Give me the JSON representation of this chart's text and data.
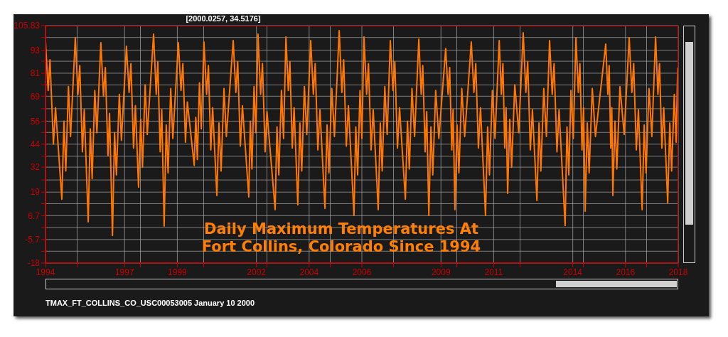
{
  "chart_data": {
    "type": "line",
    "title": "Daily Maximum Temperatures At Fort Collins, Colorado Since 1994",
    "annotations": [
      "[2000.0257, 34.5176]",
      "TMAX_FT_COLLINS_CO_USC00053005 January 10 2000"
    ],
    "x": [
      1994.0,
      1994.1,
      1994.17,
      1994.3,
      1994.38,
      1994.62,
      1994.7,
      1994.77,
      1994.87,
      1994.95,
      1995.13,
      1995.23,
      1995.3,
      1995.4,
      1995.47,
      1995.62,
      1995.7,
      1995.77,
      1995.87,
      1995.95,
      1996.1,
      1996.2,
      1996.27,
      1996.37,
      1996.43,
      1996.54,
      1996.62,
      1996.69,
      1996.8,
      1996.88,
      1997.07,
      1997.17,
      1997.24,
      1997.34,
      1997.41,
      1997.53,
      1997.61,
      1997.68,
      1997.78,
      1997.86,
      1998.1,
      1998.2,
      1998.26,
      1998.35,
      1998.41,
      1998.5,
      1998.58,
      1998.65,
      1998.75,
      1998.83,
      1999.04,
      1999.14,
      1999.21,
      1999.31,
      1999.38,
      1999.64,
      1999.7,
      1999.76,
      1999.84,
      1999.91,
      2000.01,
      2000.11,
      2000.18,
      2000.27,
      2000.34,
      2000.5,
      2000.58,
      2000.66,
      2000.77,
      2000.86,
      2001.12,
      2001.22,
      2001.29,
      2001.39,
      2001.47,
      2001.71,
      2001.77,
      2001.83,
      2001.91,
      2001.98,
      2002.06,
      2002.16,
      2002.23,
      2002.33,
      2002.4,
      2002.71,
      2002.78,
      2002.85,
      2002.95,
      2003.03,
      2003.12,
      2003.21,
      2003.27,
      2003.36,
      2003.43,
      2003.57,
      2003.65,
      2003.72,
      2003.82,
      2003.91,
      2004.06,
      2004.16,
      2004.23,
      2004.33,
      2004.41,
      2004.6,
      2004.68,
      2004.75,
      2004.86,
      2004.96,
      2005.14,
      2005.24,
      2005.31,
      2005.41,
      2005.49,
      2005.7,
      2005.77,
      2005.84,
      2005.93,
      2006.0,
      2006.08,
      2006.18,
      2006.25,
      2006.35,
      2006.43,
      2006.62,
      2006.7,
      2006.77,
      2006.87,
      2006.96,
      2007.08,
      2007.18,
      2007.25,
      2007.35,
      2007.43,
      2007.65,
      2007.73,
      2007.8,
      2007.9,
      2008.0,
      2008.16,
      2008.25,
      2008.31,
      2008.4,
      2008.46,
      2008.54,
      2008.62,
      2008.69,
      2008.8,
      2008.92,
      2009.18,
      2009.27,
      2009.33,
      2009.41,
      2009.46,
      2009.53,
      2009.61,
      2009.68,
      2009.79,
      2009.9,
      2010.15,
      2010.25,
      2010.32,
      2010.42,
      2010.5,
      2010.69,
      2010.77,
      2010.84,
      2010.95,
      2011.05,
      2011.21,
      2011.29,
      2011.35,
      2011.42,
      2011.47,
      2011.53,
      2011.61,
      2011.68,
      2011.8,
      2011.95,
      2012.12,
      2012.22,
      2012.29,
      2012.39,
      2012.47,
      2012.64,
      2012.72,
      2012.79,
      2012.9,
      2013.0,
      2013.12,
      2013.22,
      2013.29,
      2013.4,
      2013.48,
      2013.71,
      2013.78,
      2013.85,
      2013.93,
      2014.02,
      2014.12,
      2014.21,
      2014.27,
      2014.35,
      2014.41,
      2014.47,
      2014.55,
      2014.62,
      2014.74,
      2014.86,
      2015.25,
      2015.33,
      2015.38,
      2015.44,
      2015.48,
      2015.52,
      2015.6,
      2015.67,
      2015.79,
      2015.95,
      2016.14,
      2016.24,
      2016.31,
      2016.41,
      2016.49,
      2016.63,
      2016.71,
      2016.78,
      2016.89,
      2017.0,
      2017.14,
      2017.23,
      2017.29,
      2017.38,
      2017.45,
      2017.6,
      2017.68,
      2017.75,
      2017.85,
      2017.92,
      2017.98
    ],
    "series": [
      {
        "color": "#ff7700",
        "values": [
          97.7,
          72,
          88,
          44,
          63,
          15.3,
          56,
          30,
          74,
          48,
          99.5,
          70,
          85,
          40,
          62,
          3.5,
          52,
          26,
          72,
          50,
          96.9,
          69,
          84,
          38,
          60,
          -3.6,
          50,
          28,
          70,
          46,
          95.1,
          71,
          86,
          42,
          64,
          21.6,
          57,
          32,
          75,
          49,
          101.4,
          70,
          87,
          40,
          62,
          1.3,
          54,
          29,
          73,
          47,
          96.9,
          72,
          86,
          45,
          66,
          33,
          58,
          36,
          76,
          52,
          97.3,
          70,
          85,
          41,
          63,
          17.2,
          55,
          30,
          73,
          48,
          98.0,
          71,
          87,
          43,
          64,
          16.5,
          56,
          31,
          74,
          50,
          101.4,
          70,
          86,
          40,
          61,
          9.8,
          53,
          28,
          72,
          47,
          99.9,
          72,
          87,
          42,
          63,
          12.4,
          55,
          30,
          74,
          49,
          98.0,
          70,
          86,
          41,
          62,
          10.5,
          54,
          29,
          73,
          48,
          103.2,
          71,
          88,
          43,
          64,
          6.8,
          53,
          28,
          72,
          47,
          99.9,
          70,
          86,
          41,
          62,
          9.8,
          55,
          30,
          74,
          49,
          98.0,
          72,
          87,
          42,
          63,
          15.3,
          56,
          31,
          73,
          48,
          98.8,
          70,
          85,
          40,
          61,
          6.8,
          53,
          28,
          72,
          47,
          93.9,
          70,
          84,
          41,
          62,
          9.8,
          54,
          29,
          73,
          48,
          97.3,
          71,
          86,
          42,
          63,
          6.8,
          53,
          28,
          72,
          47,
          98.0,
          70,
          86,
          42,
          63,
          18.3,
          57,
          32,
          75,
          50,
          102.1,
          71,
          87,
          41,
          62,
          14.6,
          55,
          30,
          73,
          48,
          98.0,
          70,
          86,
          40,
          62,
          1.6,
          53,
          28,
          72,
          47,
          99.5,
          71,
          86,
          41,
          63,
          9.1,
          55,
          29,
          73,
          48,
          96.2,
          70,
          85,
          42,
          63,
          17.2,
          56,
          31,
          74,
          49,
          99.5,
          71,
          86,
          41,
          62,
          9.8,
          54,
          29,
          73,
          48,
          99.9,
          70,
          86,
          42,
          63,
          13.5,
          55,
          30,
          70,
          45,
          83.9
        ]
      }
    ],
    "xlim": [
      1994,
      2018
    ],
    "xticks": [
      1994,
      {
        "value": 1995.2,
        "label": null
      },
      1997,
      {
        "value": 1997.6,
        "label": null
      },
      1999,
      {
        "value": 2000.0,
        "label": null
      },
      2002,
      {
        "value": 2002.4,
        "label": null
      },
      2004,
      {
        "value": 2004.8,
        "label": null
      },
      2006,
      {
        "value": 2007.2,
        "label": null
      },
      2009,
      {
        "value": 2009.6,
        "label": null
      },
      2011,
      {
        "value": 2012.0,
        "label": null
      },
      2014,
      {
        "value": 2014.4,
        "label": null
      },
      2016,
      {
        "value": 2016.8,
        "label": null
      },
      2018
    ],
    "ylim": [
      -18,
      105.83
    ],
    "yticks": [
      -18,
      {
        "value": -11.81,
        "label": null
      },
      -5.7,
      {
        "value": 0.575,
        "label": null
      },
      6.7,
      {
        "value": 12.96,
        "label": null
      },
      19,
      {
        "value": 25.34,
        "label": null
      },
      32,
      {
        "value": 37.72,
        "label": null
      },
      44,
      {
        "value": 50.11,
        "label": null
      },
      56,
      {
        "value": 62.49,
        "label": null
      },
      69,
      {
        "value": 74.87,
        "label": null
      },
      81,
      {
        "value": 87.26,
        "label": null
      },
      93,
      {
        "value": 99.64,
        "label": null
      },
      105.83
    ],
    "grid": true,
    "marker": "none",
    "line_style": "solid"
  }
}
